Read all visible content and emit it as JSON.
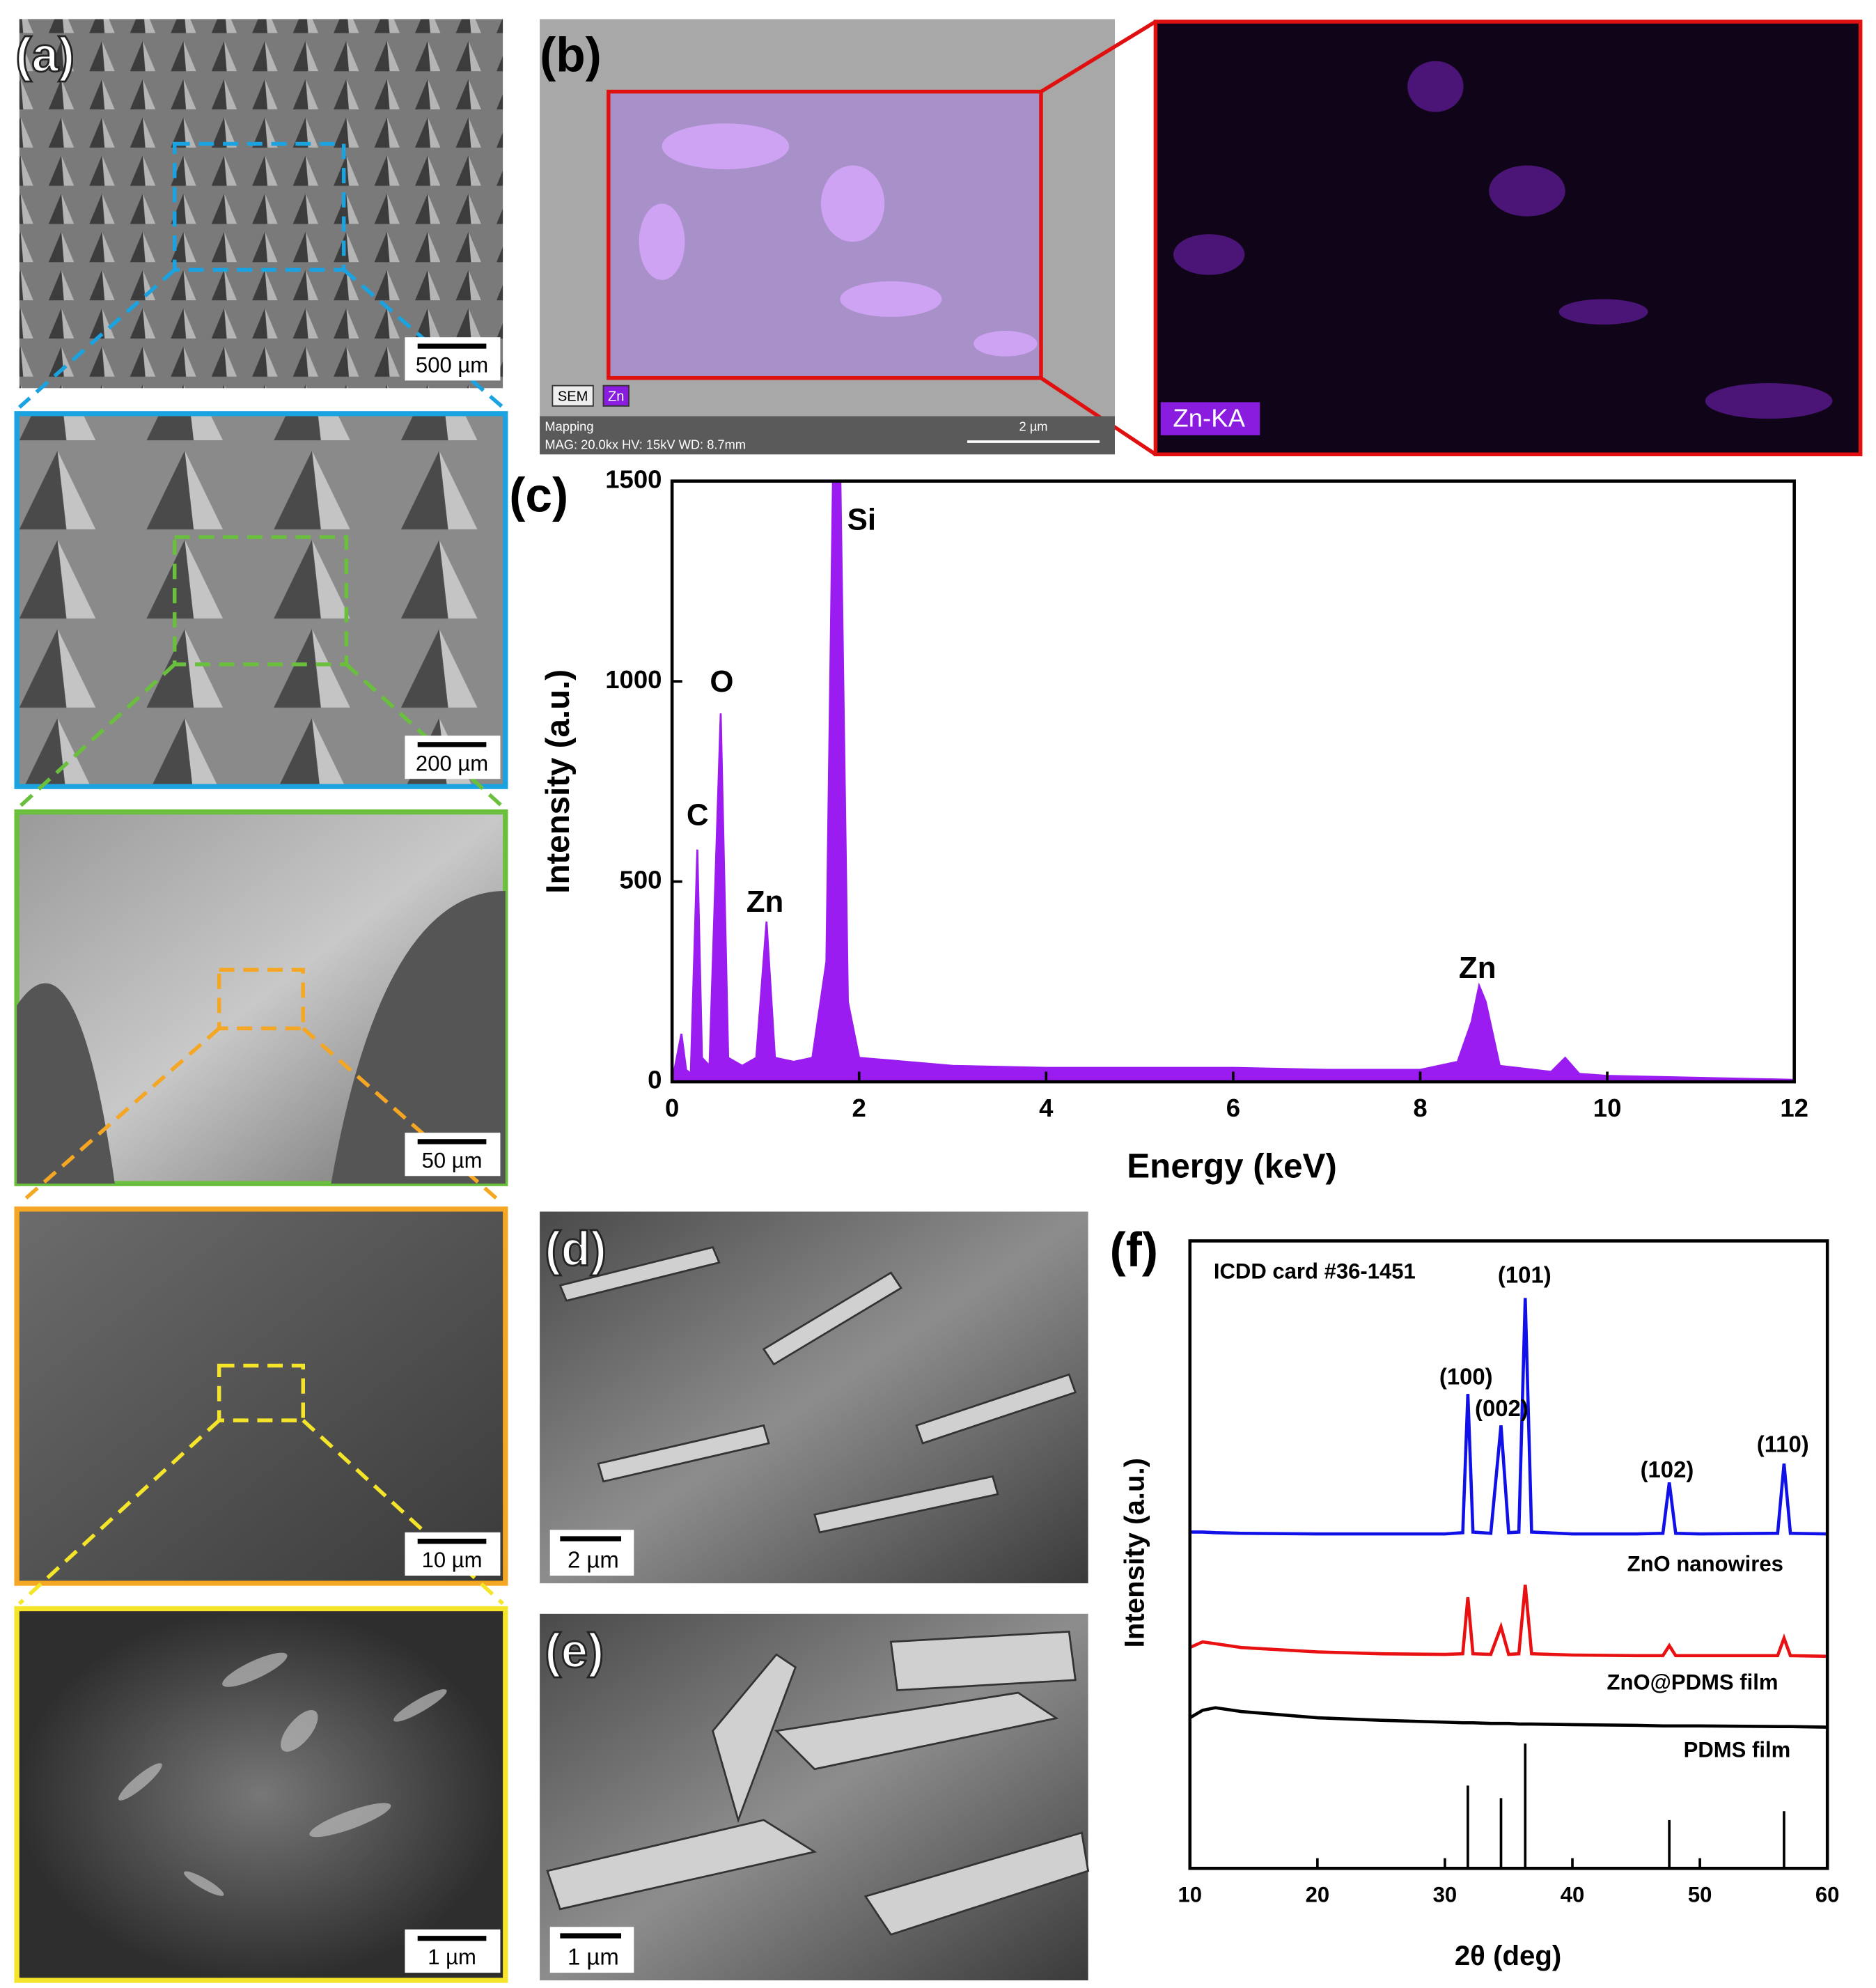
{
  "panels": {
    "a": {
      "label": "(a)",
      "scale_bars": [
        "500 µm",
        "200 µm",
        "50 µm",
        "10 µm",
        "1 µm"
      ]
    },
    "b": {
      "label": "(b)",
      "badges": [
        "SEM",
        "Zn"
      ],
      "footer_title": "Mapping",
      "footer_info": "MAG: 20.0kx  HV: 15kV  WD: 8.7mm",
      "scale_bar": "2 µm",
      "map_label": "Zn-KA"
    },
    "d": {
      "label": "(d)",
      "scale_bar": "2 µm"
    },
    "e": {
      "label": "(e)",
      "scale_bar": "1 µm"
    }
  },
  "chart_data": [
    {
      "type": "area",
      "panel_label": "(c)",
      "xlabel": "Energy (keV)",
      "ylabel": "Intensity (a.u.)",
      "color": "#9a1cf0",
      "x": [
        0,
        0.1,
        0.15,
        0.2,
        0.27,
        0.32,
        0.4,
        0.52,
        0.6,
        0.75,
        0.9,
        1.01,
        1.1,
        1.3,
        1.5,
        1.65,
        1.72,
        1.8,
        1.88,
        2,
        3,
        4,
        5,
        6,
        7,
        8,
        8.4,
        8.55,
        8.63,
        8.7,
        8.85,
        9.4,
        9.55,
        9.7,
        10,
        11,
        12
      ],
      "values": [
        0,
        120,
        30,
        20,
        580,
        60,
        40,
        920,
        60,
        40,
        60,
        400,
        60,
        50,
        60,
        300,
        1500,
        1500,
        200,
        60,
        40,
        35,
        35,
        35,
        30,
        30,
        50,
        150,
        240,
        200,
        40,
        25,
        60,
        20,
        15,
        10,
        5
      ],
      "xlim": [
        0,
        12
      ],
      "xticks": [
        0,
        2,
        4,
        6,
        8,
        10,
        12
      ],
      "ylim": [
        0,
        1500
      ],
      "yticks": [
        0,
        500,
        1000,
        1500
      ],
      "annotations": [
        "C",
        "O",
        "Zn",
        "Si",
        "Zn"
      ]
    },
    {
      "type": "line",
      "panel_label": "(f)",
      "xlabel": "2θ (deg)",
      "ylabel": "Intensity (a.u.)",
      "x": [
        10,
        11,
        12,
        14,
        20,
        25,
        30,
        31.4,
        31.8,
        32.2,
        33.6,
        34.4,
        35.0,
        35.8,
        36.3,
        36.8,
        40,
        45,
        47.1,
        47.6,
        48.1,
        50,
        56.1,
        56.6,
        57.1,
        60
      ],
      "series": [
        {
          "name": "ZnO nanowires",
          "color": "#1010e8",
          "values": [
            53.6,
            53.6,
            53.5,
            53.4,
            53.3,
            53.3,
            53.3,
            53.5,
            75.6,
            53.6,
            53.4,
            70.6,
            53.5,
            53.6,
            90.9,
            53.6,
            53.3,
            53.3,
            53.4,
            61.5,
            53.4,
            53.3,
            53.4,
            64.5,
            53.4,
            53.3
          ]
        },
        {
          "name": "ZnO@PDMS film",
          "color": "#e81010",
          "values": [
            35.2,
            36.1,
            35.8,
            35.2,
            34.5,
            34.2,
            34.1,
            34.2,
            43.2,
            34.2,
            34.1,
            38.5,
            34.1,
            34.2,
            45.2,
            34.2,
            34.0,
            33.9,
            33.9,
            35.5,
            33.9,
            33.9,
            33.9,
            36.7,
            33.9,
            33.8
          ]
        },
        {
          "name": "PDMS film",
          "color": "#000000",
          "values": [
            24.0,
            25.2,
            25.6,
            25.0,
            24.0,
            23.6,
            23.3,
            23.2,
            23.2,
            23.2,
            23.1,
            23.1,
            23.1,
            23.0,
            23.0,
            23.0,
            22.9,
            22.8,
            22.7,
            22.7,
            22.7,
            22.7,
            22.6,
            22.6,
            22.6,
            22.5
          ]
        }
      ],
      "reference": {
        "name": "ICDD card #36-1451",
        "color": "#000000",
        "x": [
          31.8,
          34.4,
          36.3,
          47.6,
          56.6
        ],
        "values": [
          13.2,
          11.2,
          19.9,
          7.7,
          9.1
        ]
      },
      "xlim": [
        10,
        60
      ],
      "xticks": [
        10,
        20,
        30,
        40,
        50,
        60
      ],
      "ylim": [
        0,
        100
      ],
      "annotations": [
        "(100)",
        "(002)",
        "(101)",
        "(102)",
        "(110)"
      ]
    }
  ]
}
